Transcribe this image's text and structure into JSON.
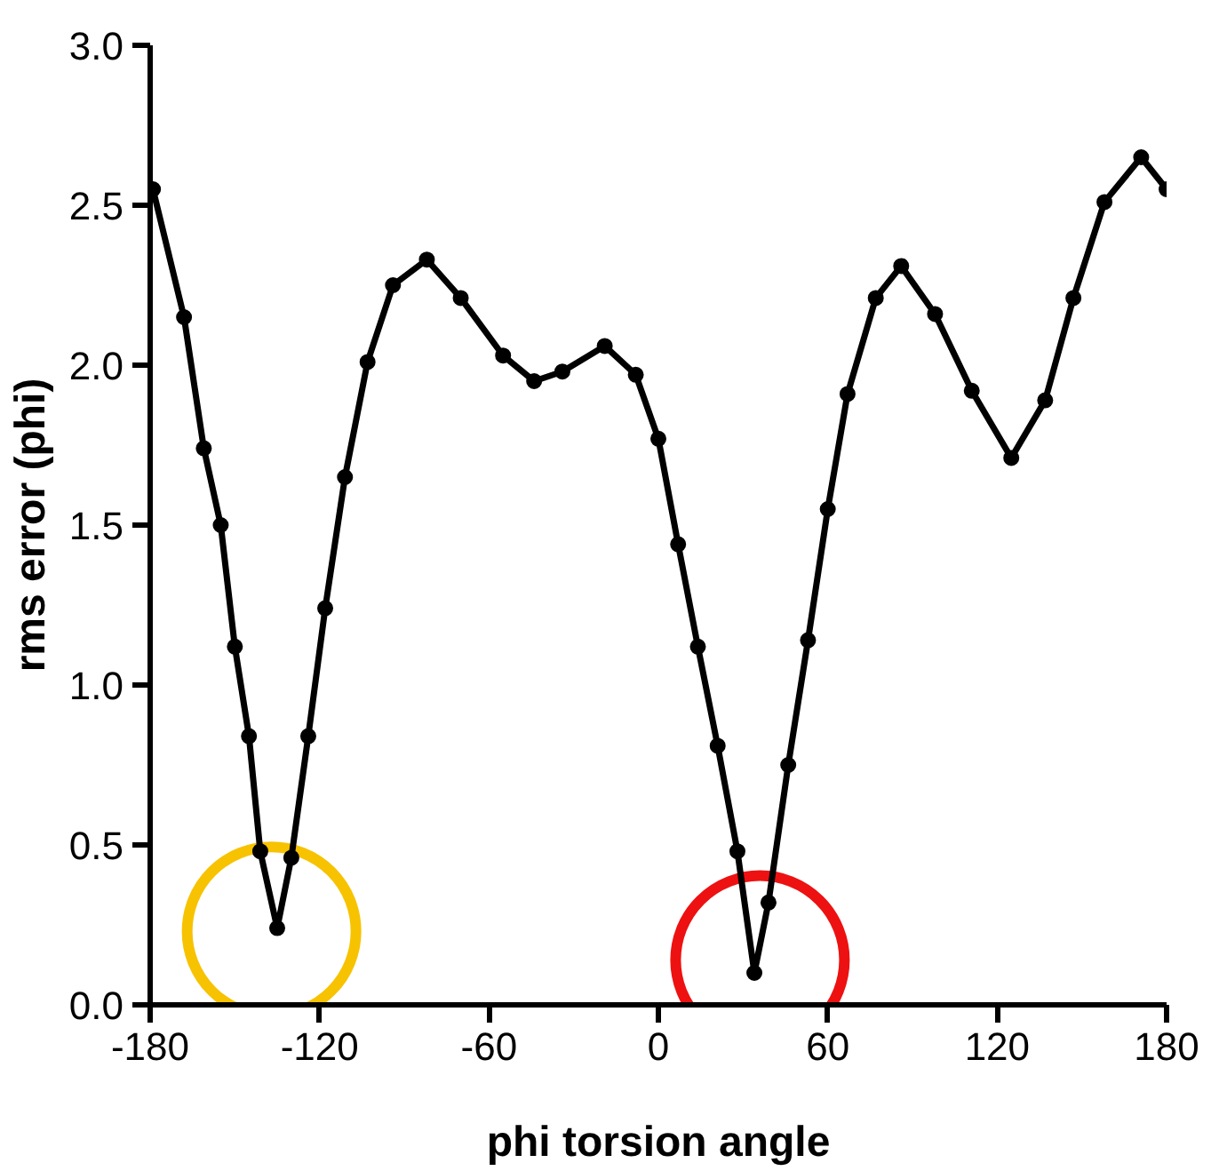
{
  "chart_data": {
    "type": "line",
    "xlabel": "phi torsion angle",
    "ylabel": "rms error (phi)",
    "xlim": [
      -180,
      180
    ],
    "ylim": [
      0,
      3
    ],
    "xticks": [
      -180,
      -120,
      -60,
      0,
      60,
      120,
      180
    ],
    "yticks": [
      {
        "value": 0,
        "label": "0.0"
      },
      {
        "value": 0.5,
        "label": "0.5"
      },
      {
        "value": 1,
        "label": "1.0"
      },
      {
        "value": 1.5,
        "label": "1.5"
      },
      {
        "value": 2,
        "label": "2.0"
      },
      {
        "value": 2.5,
        "label": "2.5"
      },
      {
        "value": 3,
        "label": "3.0"
      }
    ],
    "grid": false,
    "marker": "circle",
    "line_style": "solid",
    "series": [
      {
        "color": "#000000",
        "x": [
          -179,
          -168,
          -161,
          -155,
          -150,
          -145,
          -141,
          -135,
          -130,
          -124,
          -118,
          -111,
          -103,
          -94,
          -82,
          -70,
          -55,
          -44,
          -34,
          -19,
          -8,
          0,
          7,
          14,
          21,
          28,
          34,
          39,
          46,
          53,
          60,
          67,
          77,
          86,
          98,
          111,
          125,
          137,
          147,
          158,
          171,
          180
        ],
        "values": [
          2.55,
          2.15,
          1.74,
          1.5,
          1.12,
          0.84,
          0.48,
          0.24,
          0.46,
          0.84,
          1.24,
          1.65,
          2.01,
          2.25,
          2.33,
          2.21,
          2.03,
          1.95,
          1.98,
          2.06,
          1.97,
          1.77,
          1.44,
          1.12,
          0.81,
          0.48,
          0.1,
          0.32,
          0.75,
          1.14,
          1.55,
          1.91,
          2.21,
          2.31,
          2.16,
          1.92,
          1.71,
          1.89,
          2.21,
          2.51,
          2.65,
          2.55
        ]
      },
      {
        "type": "scatter",
        "marker": "circle",
        "color": "#f7c200",
        "x": [
          -137
        ],
        "values": [
          0.23
        ]
      },
      {
        "type": "scatter",
        "marker": "circle",
        "color": "#ee1111",
        "x": [
          36
        ],
        "values": [
          0.14
        ]
      }
    ]
  }
}
